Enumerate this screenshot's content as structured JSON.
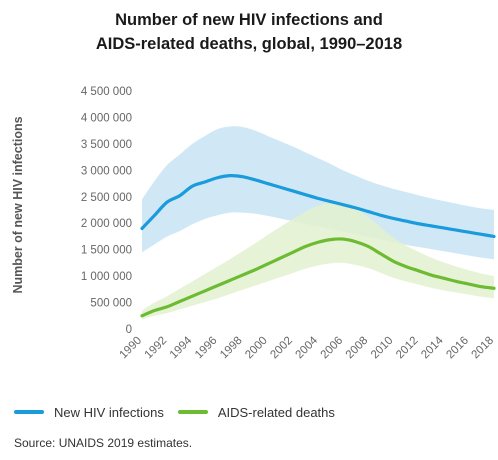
{
  "chart_data": {
    "type": "line",
    "title": "Number of new HIV infections and",
    "title_line2": "AIDS-related deaths, global, 1990–2018",
    "ylabel": "Number of new HIV infections",
    "xlabel": "",
    "ylim": [
      0,
      4500000
    ],
    "yticks": [
      0,
      500000,
      1000000,
      1500000,
      2000000,
      2500000,
      3000000,
      3500000,
      4000000,
      4500000
    ],
    "ytick_labels": [
      "0",
      "500 000",
      "1 000 000",
      "1 500 000",
      "2 000 000",
      "2 500 000",
      "3 000 000",
      "3 500 000",
      "4 000 000",
      "4 500 000"
    ],
    "x": [
      1990,
      1991,
      1992,
      1993,
      1994,
      1995,
      1996,
      1997,
      1998,
      1999,
      2000,
      2001,
      2002,
      2003,
      2004,
      2005,
      2006,
      2007,
      2008,
      2009,
      2010,
      2011,
      2012,
      2013,
      2014,
      2015,
      2016,
      2017,
      2018
    ],
    "xtick_labels": [
      "1990",
      "1992",
      "1994",
      "1996",
      "1998",
      "2000",
      "2002",
      "2004",
      "2006",
      "2008",
      "2010",
      "2012",
      "2014",
      "2016",
      "2018"
    ],
    "grid": false,
    "legend_position": "bottom",
    "series": [
      {
        "name": "New HIV infections",
        "color": "#1a9bdc",
        "band_color": "#c8e3f5",
        "values": [
          1900000,
          2150000,
          2400000,
          2520000,
          2700000,
          2780000,
          2860000,
          2900000,
          2880000,
          2820000,
          2750000,
          2680000,
          2610000,
          2540000,
          2470000,
          2410000,
          2350000,
          2290000,
          2220000,
          2150000,
          2090000,
          2040000,
          1990000,
          1950000,
          1910000,
          1870000,
          1830000,
          1790000,
          1750000
        ],
        "upper": [
          2450000,
          2800000,
          3100000,
          3300000,
          3500000,
          3650000,
          3780000,
          3830000,
          3820000,
          3750000,
          3650000,
          3550000,
          3450000,
          3340000,
          3230000,
          3120000,
          3000000,
          2900000,
          2800000,
          2720000,
          2650000,
          2590000,
          2530000,
          2470000,
          2420000,
          2370000,
          2320000,
          2280000,
          2250000
        ],
        "lower": [
          1450000,
          1600000,
          1750000,
          1850000,
          1980000,
          2080000,
          2150000,
          2200000,
          2200000,
          2180000,
          2140000,
          2090000,
          2040000,
          1990000,
          1940000,
          1890000,
          1840000,
          1790000,
          1740000,
          1690000,
          1640000,
          1590000,
          1550000,
          1510000,
          1470000,
          1430000,
          1390000,
          1350000,
          1320000
        ]
      },
      {
        "name": "AIDS-related deaths",
        "color": "#6dbb33",
        "band_color": "#e3f1cf",
        "values": [
          250000,
          350000,
          420000,
          520000,
          620000,
          720000,
          820000,
          920000,
          1020000,
          1120000,
          1230000,
          1340000,
          1450000,
          1560000,
          1640000,
          1690000,
          1700000,
          1650000,
          1560000,
          1420000,
          1280000,
          1180000,
          1100000,
          1020000,
          960000,
          900000,
          850000,
          800000,
          770000
        ],
        "upper": [
          350000,
          500000,
          620000,
          760000,
          900000,
          1040000,
          1180000,
          1320000,
          1470000,
          1620000,
          1780000,
          1930000,
          2080000,
          2220000,
          2330000,
          2380000,
          2370000,
          2270000,
          2120000,
          1920000,
          1730000,
          1580000,
          1460000,
          1350000,
          1260000,
          1180000,
          1110000,
          1050000,
          1000000
        ],
        "lower": [
          180000,
          250000,
          300000,
          370000,
          440000,
          510000,
          580000,
          660000,
          740000,
          820000,
          900000,
          980000,
          1060000,
          1140000,
          1200000,
          1240000,
          1250000,
          1210000,
          1150000,
          1060000,
          970000,
          900000,
          840000,
          780000,
          730000,
          690000,
          650000,
          610000,
          580000
        ]
      }
    ]
  },
  "source": "Source: UNAIDS 2019 estimates."
}
